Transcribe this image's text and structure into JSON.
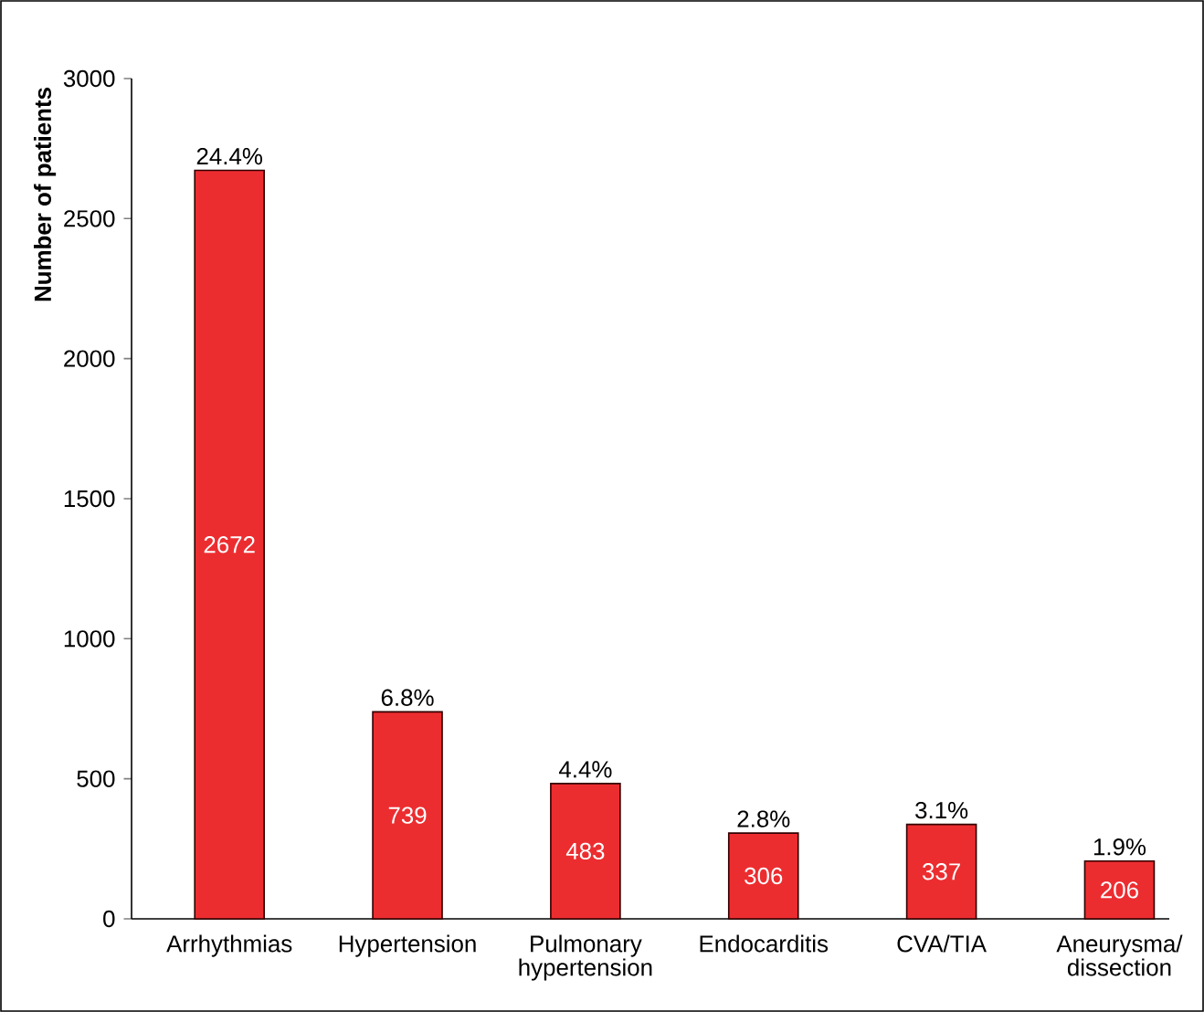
{
  "chart_data": {
    "type": "bar",
    "ylabel": "Number of patients",
    "categories": [
      "Arrhythmias",
      "Hypertension",
      "Pulmonary hypertension",
      "Endocarditis",
      "CVA/TIA",
      "Aneurysma/ dissection"
    ],
    "values": [
      2672,
      739,
      483,
      306,
      337,
      206
    ],
    "color": "#ec2d30",
    "ylim": [
      0,
      3000
    ],
    "yticks": [
      0,
      500,
      1000,
      1500,
      2000,
      2500,
      3000
    ],
    "data_labels": true,
    "annotations": [
      {
        "text": "24.4%",
        "x": "Arrhythmias",
        "y": 2672
      },
      {
        "text": "6.8%",
        "x": "Hypertension",
        "y": 739
      },
      {
        "text": "4.4%",
        "x": "Pulmonary hypertension",
        "y": 483
      },
      {
        "text": "2.8%",
        "x": "Endocarditis",
        "y": 306
      },
      {
        "text": "3.1%",
        "x": "CVA/TIA",
        "y": 337
      },
      {
        "text": "1.9%",
        "x": "Aneurysma/ dissection",
        "y": 206
      }
    ]
  }
}
